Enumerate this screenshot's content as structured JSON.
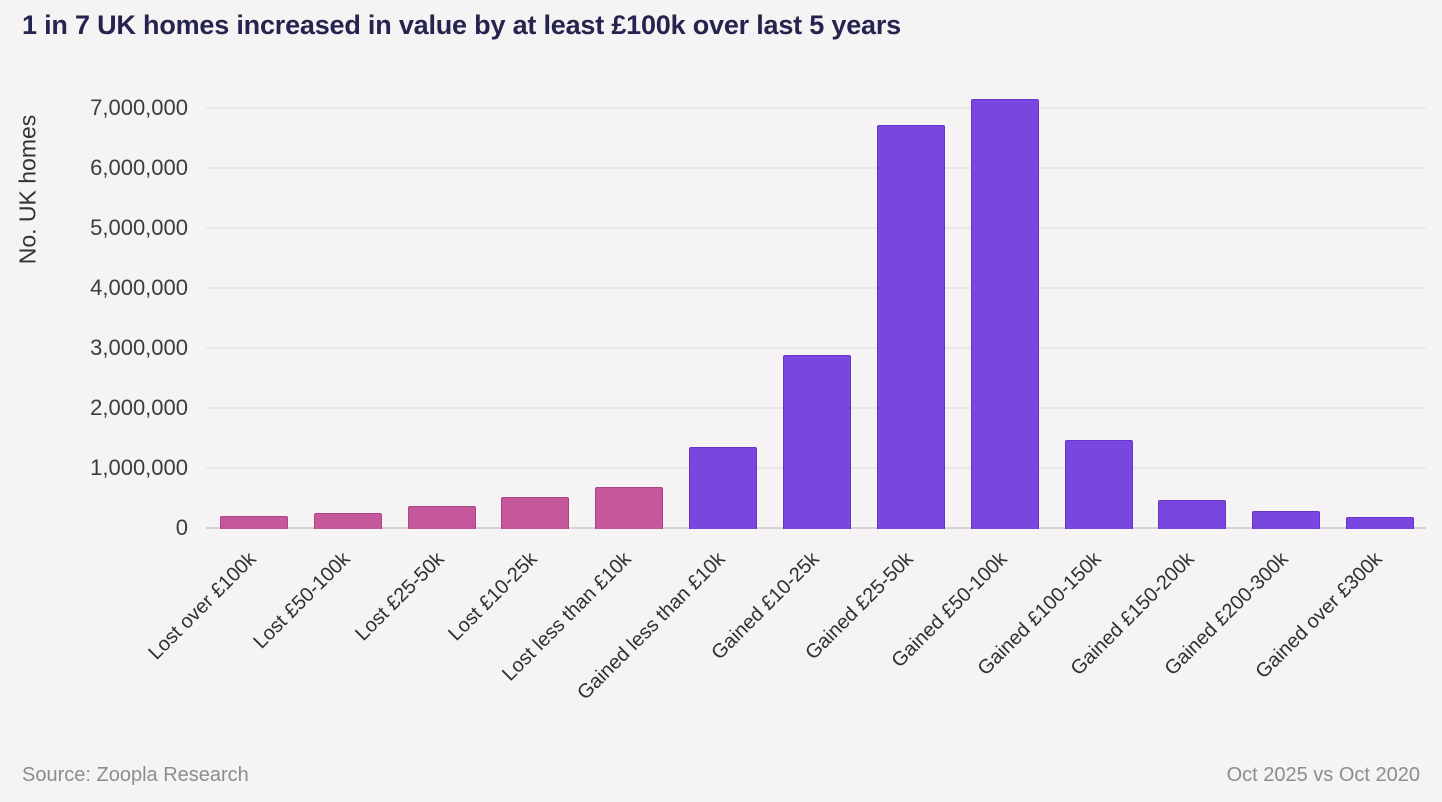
{
  "title": "1 in 7 UK homes increased in value by at least £100k over last 5 years",
  "footer": {
    "source": "Source: Zoopla Research",
    "period": "Oct 2025 vs Oct 2020"
  },
  "colors": {
    "background": "#f5f3f4",
    "title_text": "#24244e",
    "lost_bar": "#c4589b",
    "gained_bar": "#7847df",
    "grid_line": "#e9e7e8",
    "axis_line": "#d5d3d4",
    "tick_text": "#3b3b3e",
    "footer_text": "#8e8c8d"
  },
  "chart_data": {
    "type": "bar",
    "title": "1 in 7 UK homes increased in value by at least £100k over last 5 years",
    "xlabel": "",
    "ylabel": "No. UK homes",
    "categories": [
      "Lost over £100k",
      "Lost £50-100k",
      "Lost £25-50k",
      "Lost £10-25k",
      "Lost less than £10k",
      "Gained less than £10k",
      "Gained £10-25k",
      "Gained £25-50k",
      "Gained £50-100k",
      "Gained £100-150k",
      "Gained £150-200k",
      "Gained £200-300k",
      "Gained over £300k"
    ],
    "values": [
      200000,
      250000,
      360000,
      520000,
      690000,
      1350000,
      2880000,
      6720000,
      7150000,
      1470000,
      460000,
      280000,
      180000
    ],
    "series": [
      {
        "name": "Lost value",
        "color": "#c4589b",
        "category_indices": [
          0,
          1,
          2,
          3,
          4
        ]
      },
      {
        "name": "Gained value",
        "color": "#7847df",
        "category_indices": [
          5,
          6,
          7,
          8,
          9,
          10,
          11,
          12
        ]
      }
    ],
    "lost_count": 5,
    "ylim": [
      0,
      7383333
    ],
    "ytick_values": [
      0,
      1000000,
      2000000,
      3000000,
      4000000,
      5000000,
      6000000,
      7000000
    ],
    "ytick_labels": [
      "0",
      "1,000,000",
      "2,000,000",
      "3,000,000",
      "4,000,000",
      "5,000,000",
      "6,000,000",
      "7,000,000"
    ],
    "grid": true,
    "legend": "none"
  }
}
